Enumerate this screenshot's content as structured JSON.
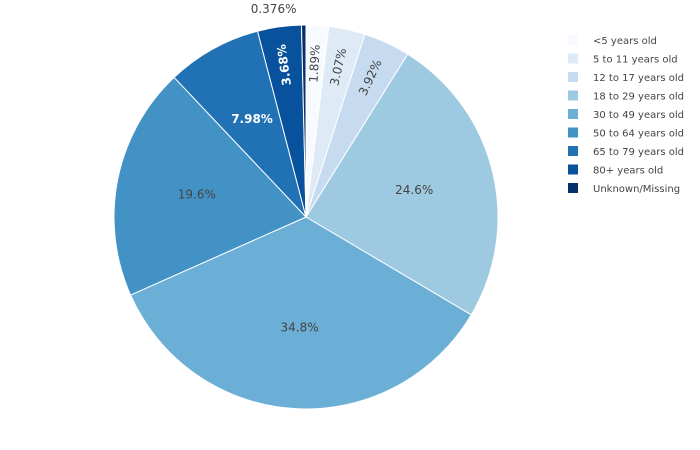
{
  "chart_data": {
    "type": "pie",
    "categories": [
      "<5 years old",
      "5 to 11 years old",
      "12 to 17 years old",
      "18 to 29 years old",
      "30 to 49 years old",
      "50 to 64 years old",
      "65 to 79 years old",
      "80+ years old",
      "Unknown/Missing"
    ],
    "values": [
      1.89,
      3.07,
      3.92,
      24.6,
      34.8,
      19.6,
      7.98,
      3.68,
      0.376
    ],
    "labels": [
      "1.89%",
      "3.07%",
      "3.92%",
      "24.6%",
      "34.8%",
      "19.6%",
      "7.98%",
      "3.68%",
      "0.376%"
    ],
    "colors": [
      "#f7fbff",
      "#deebf7",
      "#c6dbef",
      "#9ecae1",
      "#6baed6",
      "#4292c6",
      "#2171b5",
      "#08519c",
      "#08306b"
    ],
    "label_colors": [
      "#444444",
      "#444444",
      "#444444",
      "#444444",
      "#444444",
      "#444444",
      "#ffffff",
      "#ffffff",
      "#444444"
    ],
    "legend_position": "right"
  }
}
